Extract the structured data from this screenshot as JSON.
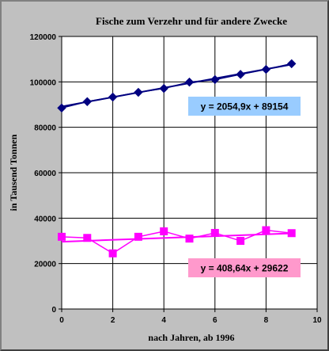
{
  "chart_data": {
    "type": "scatter",
    "title": "Fische zum Verzehr und für andere Zwecke",
    "xlabel": "nach Jahren, ab 1996",
    "ylabel": "in Tausend Tonnen",
    "xlim": [
      0,
      10
    ],
    "ylim": [
      0,
      120000
    ],
    "x_ticks": [
      "0",
      "2",
      "4",
      "6",
      "8",
      "10"
    ],
    "y_ticks": [
      "0",
      "20000",
      "40000",
      "60000",
      "80000",
      "100000",
      "120000"
    ],
    "grid": true,
    "series": [
      {
        "color": "#000080",
        "marker": "diamond",
        "x": [
          0,
          1,
          2,
          3,
          4,
          5,
          6,
          7,
          8,
          9
        ],
        "y": [
          88500,
          91300,
          93300,
          95400,
          97100,
          99900,
          101000,
          103300,
          105500,
          108000
        ],
        "trendline": {
          "slope": 2054.9,
          "intercept": 89154,
          "equation": "y = 2054,9x + 89154",
          "label_bg": "#99ccff"
        }
      },
      {
        "color": "#ff00ff",
        "marker": "square",
        "x": [
          0,
          1,
          2,
          3,
          4,
          5,
          6,
          7,
          8,
          9
        ],
        "y": [
          31800,
          31300,
          24500,
          31800,
          34200,
          31000,
          33500,
          30000,
          34700,
          33400
        ],
        "trendline": {
          "slope": 408.64,
          "intercept": 29622,
          "equation": "y = 408,64x + 29622",
          "label_bg": "#ff99cc"
        }
      }
    ]
  }
}
